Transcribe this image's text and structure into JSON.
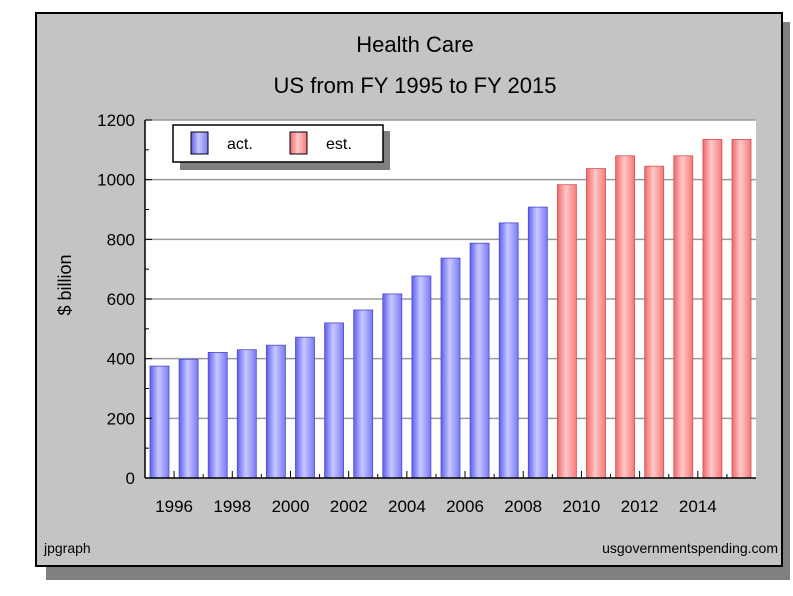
{
  "chart_data": {
    "type": "bar",
    "title": "Health Care",
    "subtitle": "US from FY 1995 to FY 2015",
    "ylabel": "$ billion",
    "xlabel": "",
    "ylim": [
      0,
      1200
    ],
    "yticks": [
      0,
      200,
      400,
      600,
      800,
      1000,
      1200
    ],
    "x_tick_labels": [
      "1996",
      "1998",
      "2000",
      "2002",
      "2004",
      "2006",
      "2008",
      "2010",
      "2012",
      "2014"
    ],
    "grid": true,
    "legend_position": "top-left",
    "series": [
      {
        "name": "act.",
        "color": "#8f8fff",
        "x": [
          1995,
          1996,
          1997,
          1998,
          1999,
          2000,
          2001,
          2002,
          2003,
          2004,
          2005,
          2006,
          2007,
          2008
        ],
        "values": [
          375,
          398,
          421,
          430,
          445,
          472,
          520,
          563,
          617,
          677,
          737,
          787,
          855,
          908
        ]
      },
      {
        "name": "est.",
        "color": "#ff8c8c",
        "x": [
          2009,
          2010,
          2011,
          2012,
          2013,
          2014,
          2015
        ],
        "values": [
          983,
          1037,
          1080,
          1045,
          1080,
          1135,
          1135
        ]
      }
    ]
  },
  "footer": {
    "left": "jpgraph",
    "right": "usgovernmentspending.com"
  }
}
